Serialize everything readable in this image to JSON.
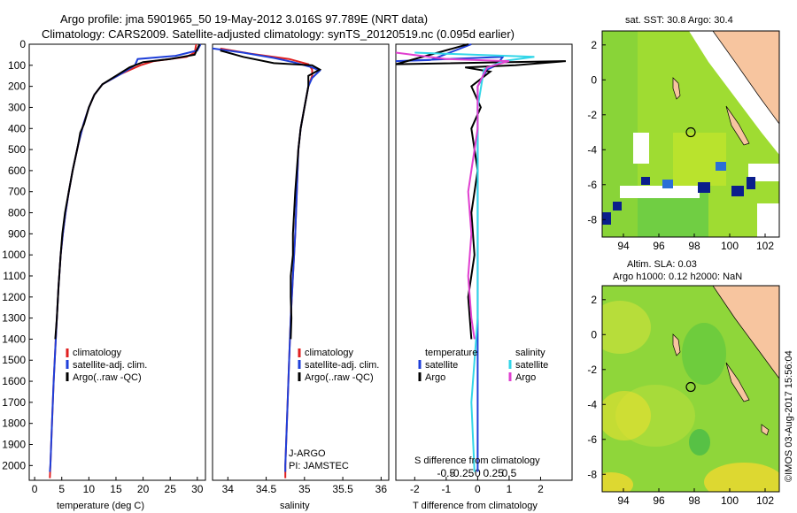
{
  "title": {
    "line1": "Argo profile: jma 5901965_50 19-May-2012 3.016S 97.789E (NRT data)",
    "line2": "Climatology: CARS2009. Satellite-adjusted climatology: synTS_20120519.nc (0.095d earlier)"
  },
  "colors": {
    "clim": "#e02020",
    "sat": "#1f3fd9",
    "argo": "#000000",
    "sal_sat": "#33d6e8",
    "sal_argo": "#e040d0",
    "land": "#f7c59f"
  },
  "chart_data": [
    {
      "id": "temperature",
      "type": "line",
      "xlabel": "temperature (deg C)",
      "ylabel": "",
      "xlim": [
        -1,
        31.5
      ],
      "ylim": [
        2070,
        0
      ],
      "xticks": [
        0,
        5,
        10,
        15,
        20,
        25,
        30
      ],
      "yticks": [
        0,
        100,
        200,
        300,
        400,
        500,
        600,
        700,
        800,
        900,
        1000,
        1100,
        1200,
        1300,
        1400,
        1500,
        1600,
        1700,
        1800,
        1900,
        2000
      ],
      "legend": [
        "climatology",
        "satellite-adj. clim.",
        "Argo(..raw -QC)"
      ],
      "series": [
        {
          "name": "climatology",
          "points": [
            [
              29.8,
              0
            ],
            [
              29.5,
              40
            ],
            [
              28,
              60
            ],
            [
              22,
              80
            ],
            [
              19.5,
              100
            ],
            [
              16,
              140
            ],
            [
              12.5,
              190
            ],
            [
              11,
              240
            ],
            [
              10,
              300
            ],
            [
              9,
              380
            ],
            [
              8,
              480
            ],
            [
              7,
              600
            ],
            [
              6.3,
              700
            ],
            [
              5.7,
              800
            ],
            [
              5.2,
              900
            ],
            [
              4.8,
              1000
            ],
            [
              4.4,
              1150
            ],
            [
              4.1,
              1300
            ],
            [
              3.8,
              1450
            ],
            [
              3.5,
              1600
            ],
            [
              3.2,
              1800
            ],
            [
              2.9,
              2000
            ],
            [
              2.8,
              2060
            ]
          ]
        },
        {
          "name": "satellite-adj. clim.",
          "points": [
            [
              30.6,
              0
            ],
            [
              30,
              30
            ],
            [
              26,
              55
            ],
            [
              19,
              70
            ],
            [
              18.5,
              100
            ],
            [
              16,
              140
            ],
            [
              12.5,
              190
            ],
            [
              11,
              240
            ],
            [
              10,
              300
            ],
            [
              9,
              380
            ],
            [
              8,
              480
            ],
            [
              7,
              600
            ],
            [
              6.3,
              700
            ],
            [
              5.7,
              800
            ],
            [
              5.2,
              900
            ],
            [
              4.8,
              1000
            ],
            [
              4.4,
              1150
            ],
            [
              4.1,
              1300
            ],
            [
              3.8,
              1450
            ],
            [
              3.5,
              1600
            ],
            [
              3.2,
              1800
            ],
            [
              2.9,
              2000
            ],
            [
              2.8,
              2030
            ]
          ]
        },
        {
          "name": "Argo(..raw -QC)",
          "points": [
            [
              30.4,
              0
            ],
            [
              29.5,
              50
            ],
            [
              25,
              70
            ],
            [
              20,
              85
            ],
            [
              17.5,
              110
            ],
            [
              15,
              150
            ],
            [
              12.5,
              190
            ],
            [
              11,
              240
            ],
            [
              10,
              300
            ],
            [
              9.1,
              380
            ],
            [
              8.4,
              420
            ],
            [
              8,
              480
            ],
            [
              7,
              600
            ],
            [
              6.3,
              700
            ],
            [
              5.6,
              800
            ],
            [
              5.1,
              900
            ],
            [
              4.8,
              1000
            ],
            [
              4.4,
              1150
            ],
            [
              4.1,
              1300
            ],
            [
              3.8,
              1400
            ]
          ]
        }
      ]
    },
    {
      "id": "salinity",
      "type": "line",
      "xlabel": "salinity",
      "ylim": [
        2070,
        0
      ],
      "xlim": [
        33.8,
        36.1
      ],
      "xticks": [
        34,
        34.5,
        35,
        35.5,
        36
      ],
      "legend": [
        "climatology",
        "satellite-adj. clim.",
        "Argo(..raw -QC)"
      ],
      "series": [
        {
          "name": "climatology",
          "points": [
            [
              33.9,
              20
            ],
            [
              34.3,
              45
            ],
            [
              34.8,
              70
            ],
            [
              35.05,
              95
            ],
            [
              35.1,
              120
            ],
            [
              35.1,
              150
            ],
            [
              35.05,
              200
            ],
            [
              35.0,
              300
            ],
            [
              34.95,
              400
            ],
            [
              34.92,
              500
            ],
            [
              34.9,
              700
            ],
            [
              34.88,
              900
            ],
            [
              34.85,
              1100
            ],
            [
              34.82,
              1300
            ],
            [
              34.8,
              1500
            ],
            [
              34.78,
              1700
            ],
            [
              34.75,
              2000
            ],
            [
              34.75,
              2060
            ]
          ]
        },
        {
          "name": "satellite-adj. clim.",
          "points": [
            [
              33.8,
              20
            ],
            [
              34.2,
              40
            ],
            [
              34.6,
              65
            ],
            [
              34.85,
              85
            ],
            [
              35.1,
              110
            ],
            [
              35.2,
              125
            ],
            [
              35.1,
              160
            ],
            [
              35.05,
              200
            ],
            [
              35.0,
              300
            ],
            [
              34.95,
              400
            ],
            [
              34.92,
              500
            ],
            [
              34.9,
              700
            ],
            [
              34.88,
              900
            ],
            [
              34.85,
              1100
            ],
            [
              34.82,
              1300
            ],
            [
              34.8,
              1500
            ],
            [
              34.78,
              1700
            ],
            [
              34.75,
              2000
            ],
            [
              34.75,
              2030
            ]
          ]
        },
        {
          "name": "Argo(..raw -QC)",
          "points": [
            [
              33.9,
              30
            ],
            [
              34.2,
              60
            ],
            [
              34.6,
              90
            ],
            [
              35.1,
              100
            ],
            [
              35.2,
              120
            ],
            [
              35.05,
              150
            ],
            [
              35.05,
              200
            ],
            [
              35.0,
              300
            ],
            [
              34.95,
              400
            ],
            [
              34.92,
              500
            ],
            [
              34.88,
              700
            ],
            [
              34.85,
              900
            ],
            [
              34.85,
              1000
            ],
            [
              34.82,
              1100
            ],
            [
              34.82,
              1200
            ],
            [
              34.83,
              1300
            ],
            [
              34.82,
              1400
            ]
          ]
        }
      ],
      "annotation": [
        "J-ARGO",
        "PI: JAMSTEC"
      ]
    },
    {
      "id": "differences",
      "type": "line",
      "xlabel": "T difference from climatology",
      "xlabel_top": "S difference from climatology",
      "xlim": [
        -2.6,
        3.0
      ],
      "xticks": [
        -2,
        -1,
        0,
        1,
        2
      ],
      "xticks_top": [
        -0.5,
        -0.25,
        0,
        0.25,
        0.5
      ],
      "ylim": [
        2070,
        0
      ],
      "legend_left": {
        "title": "temperature",
        "items": [
          "satellite",
          "Argo"
        ]
      },
      "legend_right": {
        "title": "salinity",
        "items": [
          "satellite",
          "Argo"
        ]
      },
      "series": [
        {
          "name": "temperature satellite",
          "points": [
            [
              -0.2,
              0
            ],
            [
              -1.5,
              75
            ],
            [
              -2.6,
              80
            ],
            [
              0.8,
              60
            ],
            [
              0.6,
              100
            ],
            [
              0.3,
              120
            ],
            [
              0,
              200
            ],
            [
              0,
              400
            ],
            [
              0,
              800
            ],
            [
              0,
              1200
            ],
            [
              0,
              1600
            ],
            [
              0,
              2030
            ]
          ]
        },
        {
          "name": "temperature Argo",
          "points": [
            [
              -0.3,
              0
            ],
            [
              -2.6,
              95
            ],
            [
              2.8,
              80
            ],
            [
              1.2,
              100
            ],
            [
              -0.4,
              110
            ],
            [
              0.4,
              130
            ],
            [
              -0.2,
              200
            ],
            [
              0.1,
              300
            ],
            [
              -0.2,
              400
            ],
            [
              0,
              600
            ],
            [
              -0.2,
              800
            ],
            [
              -0.1,
              1000
            ],
            [
              -0.3,
              1200
            ],
            [
              -0.2,
              1400
            ]
          ]
        },
        {
          "name": "salinity satellite",
          "points": [
            [
              -2.0,
              40
            ],
            [
              1.8,
              60
            ],
            [
              0.8,
              80
            ],
            [
              0.2,
              120
            ],
            [
              0,
              300
            ],
            [
              0,
              800
            ],
            [
              0,
              1300
            ],
            [
              -0.2,
              1700
            ],
            [
              -0.1,
              2030
            ]
          ]
        },
        {
          "name": "salinity Argo",
          "points": [
            [
              -2.6,
              40
            ],
            [
              -1.0,
              70
            ],
            [
              1.0,
              80
            ],
            [
              0.3,
              110
            ],
            [
              0,
              200
            ],
            [
              0,
              400
            ],
            [
              -0.3,
              700
            ],
            [
              -0.2,
              900
            ],
            [
              -0.3,
              1100
            ],
            [
              -0.2,
              1300
            ],
            [
              -0.1,
              1400
            ]
          ]
        }
      ]
    },
    {
      "id": "sst_map",
      "type": "heatmap",
      "title": "sat. SST: 30.8  Argo: 30.4",
      "xlim": [
        92.8,
        102.8
      ],
      "ylim": [
        -9,
        2.8
      ],
      "xticks": [
        94,
        96,
        98,
        100,
        102
      ],
      "yticks": [
        2,
        0,
        -2,
        -4,
        -6,
        -8
      ],
      "marker": [
        97.8,
        -3.0
      ]
    },
    {
      "id": "sla_map",
      "type": "heatmap",
      "title_line1": "Altim. SLA: 0.03",
      "title_line2": "Argo h1000: 0.12  h2000: NaN",
      "xlim": [
        92.8,
        102.8
      ],
      "ylim": [
        -9,
        2.8
      ],
      "xticks": [
        94,
        96,
        98,
        100,
        102
      ],
      "yticks": [
        2,
        0,
        -2,
        -4,
        -6,
        -8
      ],
      "marker": [
        97.8,
        -3.0
      ]
    }
  ],
  "credit": "©IMOS 03-Aug-2017 15:56:04"
}
